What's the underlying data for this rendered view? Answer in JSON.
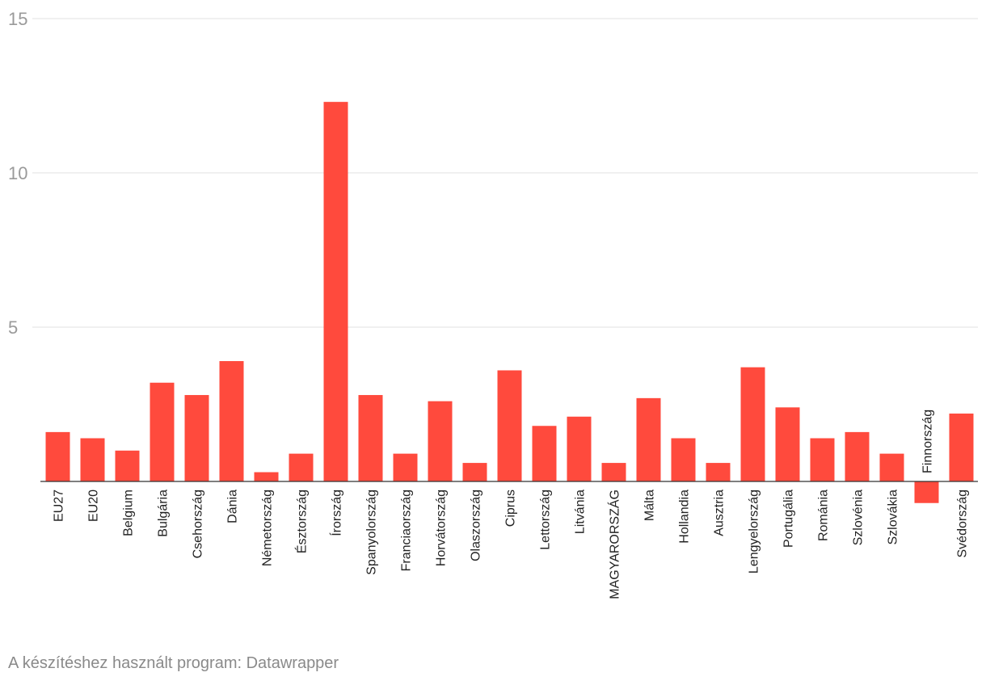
{
  "chart_data": {
    "type": "bar",
    "title": "",
    "xlabel": "",
    "ylabel": "",
    "ylim": [
      -0.7,
      15
    ],
    "yticks": [
      5,
      10,
      15
    ],
    "grid": true,
    "bar_color": "#ff4a3d",
    "categories": [
      "EU27",
      "EU20",
      "Belgium",
      "Bulgária",
      "Csehország",
      "Dánia",
      "Németország",
      "Észtország",
      "Írország",
      "Spanyolország",
      "Franciaország",
      "Horvátország",
      "Olaszország",
      "Ciprus",
      "Lettország",
      "Litvánia",
      "MAGYARORSZÁG",
      "Málta",
      "Hollandia",
      "Ausztria",
      "Lengyelország",
      "Portugália",
      "Románia",
      "Szlovénia",
      "Szlovákia",
      "Finnország",
      "Svédország"
    ],
    "values": [
      1.6,
      1.4,
      1.0,
      3.2,
      2.8,
      3.9,
      0.3,
      0.9,
      12.3,
      2.8,
      0.9,
      2.6,
      0.6,
      3.6,
      1.8,
      2.1,
      0.6,
      2.7,
      1.4,
      0.6,
      3.7,
      2.4,
      1.4,
      1.6,
      0.9,
      -0.7,
      2.2
    ]
  },
  "footer": {
    "credit": "A készítéshez használt program: Datawrapper"
  }
}
